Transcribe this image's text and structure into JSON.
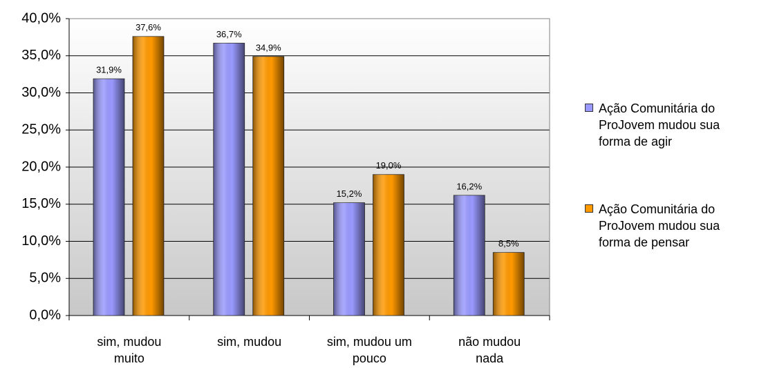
{
  "chart_data": {
    "type": "bar",
    "categories": [
      "sim, mudou muito",
      "sim, mudou",
      "sim, mudou um pouco",
      "não mudou nada"
    ],
    "series": [
      {
        "name": "Ação Comunitária do ProJovem mudou sua forma de agir",
        "color": "#9999ff",
        "values": [
          31.9,
          36.7,
          15.2,
          16.2
        ],
        "value_labels": [
          "31,9%",
          "36,7%",
          "15,2%",
          "16,2%"
        ]
      },
      {
        "name": "Ação Comunitária do ProJovem mudou sua forma de pensar",
        "color": "#ff9900",
        "values": [
          37.6,
          34.9,
          19.0,
          8.5
        ],
        "value_labels": [
          "37,6%",
          "34,9%",
          "19,0%",
          "8,5%"
        ]
      }
    ],
    "ylim": [
      0,
      40
    ],
    "yticks": [
      {
        "value": 0,
        "label": "0,0%"
      },
      {
        "value": 5,
        "label": "5,0%"
      },
      {
        "value": 10,
        "label": "10,0%"
      },
      {
        "value": 15,
        "label": "15,0%"
      },
      {
        "value": 20,
        "label": "20,0%"
      },
      {
        "value": 25,
        "label": "25,0%"
      },
      {
        "value": 30,
        "label": "30,0%"
      },
      {
        "value": 35,
        "label": "35,0%"
      },
      {
        "value": 40,
        "label": "40,0%"
      }
    ],
    "grid": true,
    "legend": "right"
  }
}
